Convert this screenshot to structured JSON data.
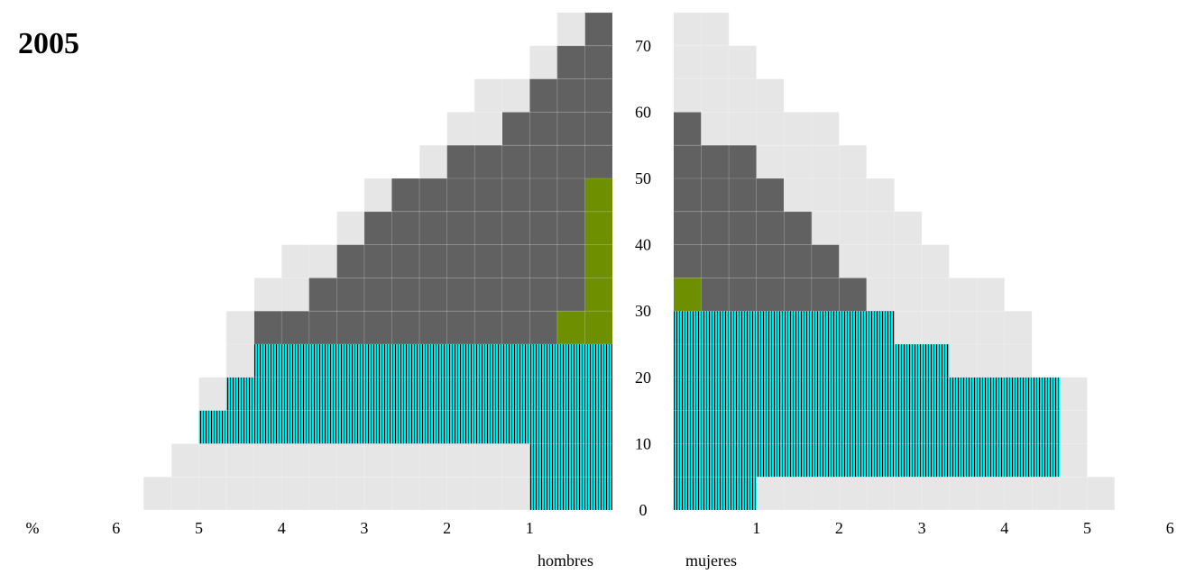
{
  "title": "2005",
  "chart_data": {
    "type": "bar",
    "orientation": "horizontal",
    "title": "2005",
    "age_unit_years": 5,
    "age_ticks": [
      0,
      10,
      20,
      30,
      40,
      50,
      60,
      70
    ],
    "x_unit_label": "%",
    "x_ticks": [
      1,
      2,
      3,
      4,
      5,
      6
    ],
    "xlim": [
      0,
      6
    ],
    "ylim": [
      0,
      75
    ],
    "sex_labels": {
      "male": "hombres",
      "female": "mujeres"
    },
    "age_groups": [
      "0-4",
      "5-9",
      "10-14",
      "15-19",
      "20-24",
      "25-29",
      "30-34",
      "35-39",
      "40-44",
      "45-49",
      "50-54",
      "55-59",
      "60-64",
      "65-69",
      "70-74"
    ],
    "colors": {
      "background": "#e6e6e6",
      "dark": "#616161",
      "green": "#6e9000",
      "cyan": "#00e5e5",
      "hatch": "#000000"
    },
    "series": [
      {
        "name": "hombres",
        "background": [
          5.67,
          5.33,
          5.0,
          5.0,
          4.67,
          4.67,
          4.33,
          4.0,
          3.33,
          3.0,
          2.33,
          2.0,
          1.67,
          1.0,
          0.67
        ],
        "dark": [
          0,
          0.33,
          0.33,
          1.67,
          4.33,
          4.33,
          3.67,
          3.33,
          3.0,
          2.67,
          2.0,
          1.33,
          1.0,
          0.67,
          0.33
        ],
        "green": [
          0,
          0,
          0,
          0.33,
          0.67,
          0.67,
          0.33,
          0.33,
          0.33,
          0.33,
          0,
          0,
          0,
          0,
          0
        ],
        "cyan": [
          1.0,
          1.0,
          5.0,
          4.67,
          4.33,
          0,
          0,
          0,
          0,
          0,
          0,
          0,
          0,
          0,
          0
        ]
      },
      {
        "name": "mujeres",
        "background": [
          5.33,
          5.0,
          5.0,
          5.0,
          4.33,
          4.33,
          4.0,
          3.33,
          3.0,
          2.67,
          2.33,
          2.0,
          1.33,
          1.0,
          0.67
        ],
        "dark": [
          0,
          0,
          0,
          1.33,
          2.33,
          2.67,
          2.33,
          2.0,
          1.67,
          1.33,
          1.0,
          0.33,
          0,
          0,
          0
        ],
        "green": [
          0,
          0,
          0,
          0,
          0.67,
          0.33,
          0.33,
          0,
          0,
          0,
          0,
          0,
          0,
          0,
          0
        ],
        "cyan": [
          1.0,
          4.67,
          4.67,
          4.67,
          3.33,
          2.67,
          0,
          0,
          0,
          0,
          0,
          0,
          0,
          0,
          0
        ]
      }
    ]
  }
}
